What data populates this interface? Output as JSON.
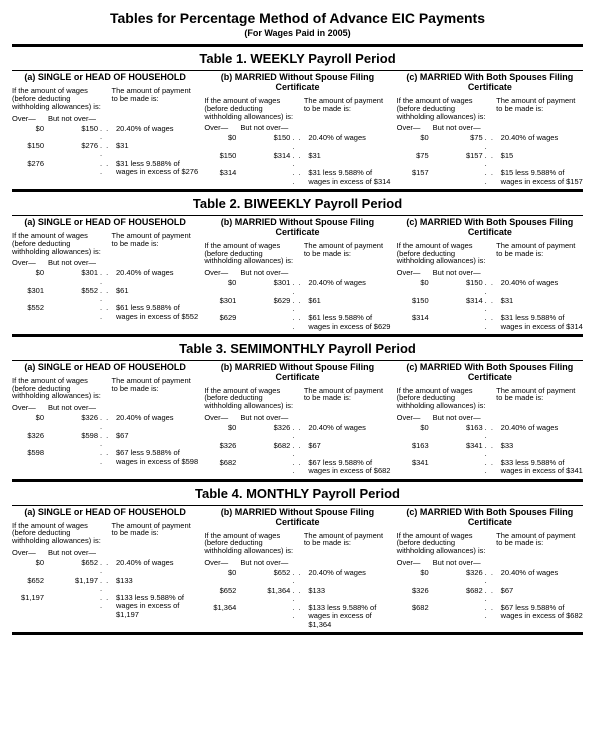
{
  "title": "Tables for Percentage Method of Advance EIC Payments",
  "subtitle": "(For Wages Paid in 2005)",
  "columnHeadings": {
    "a": "(a) SINGLE or HEAD OF HOUSEHOLD",
    "b": "(b) MARRIED Without Spouse Filing Certificate",
    "c": "(c) MARRIED With Both Spouses Filing Certificate"
  },
  "condLeft": "If the amount of wages (before deducting withholding allowances) is:",
  "condRight": "The amount of payment to be made is:",
  "overLabel": "Over—",
  "butNotOverLabel": "But not over—",
  "dots": ". . .",
  "tables": [
    {
      "title": "Table 1. WEEKLY Payroll Period",
      "cols": {
        "a": [
          {
            "over": "$0",
            "notOver": "$150",
            "pay": "20.40% of wages"
          },
          {
            "over": "$150",
            "notOver": "$276",
            "pay": "$31"
          },
          {
            "over": "$276",
            "notOver": "",
            "pay": "$31 less 9.588% of wages in excess of $276"
          }
        ],
        "b": [
          {
            "over": "$0",
            "notOver": "$150",
            "pay": "20.40% of wages"
          },
          {
            "over": "$150",
            "notOver": "$314",
            "pay": "$31"
          },
          {
            "over": "$314",
            "notOver": "",
            "pay": "$31 less 9.588% of wages in excess of $314"
          }
        ],
        "c": [
          {
            "over": "$0",
            "notOver": "$75",
            "pay": "20.40% of wages"
          },
          {
            "over": "$75",
            "notOver": "$157",
            "pay": "$15"
          },
          {
            "over": "$157",
            "notOver": "",
            "pay": "$15 less 9.588% of wages in excess of $157"
          }
        ]
      }
    },
    {
      "title": "Table 2. BIWEEKLY Payroll Period",
      "cols": {
        "a": [
          {
            "over": "$0",
            "notOver": "$301",
            "pay": "20.40% of wages"
          },
          {
            "over": "$301",
            "notOver": "$552",
            "pay": "$61"
          },
          {
            "over": "$552",
            "notOver": "",
            "pay": "$61 less 9.588% of wages in excess of $552"
          }
        ],
        "b": [
          {
            "over": "$0",
            "notOver": "$301",
            "pay": "20.40% of wages"
          },
          {
            "over": "$301",
            "notOver": "$629",
            "pay": "$61"
          },
          {
            "over": "$629",
            "notOver": "",
            "pay": "$61 less 9.588% of wages in excess of $629"
          }
        ],
        "c": [
          {
            "over": "$0",
            "notOver": "$150",
            "pay": "20.40% of wages"
          },
          {
            "over": "$150",
            "notOver": "$314",
            "pay": "$31"
          },
          {
            "over": "$314",
            "notOver": "",
            "pay": "$31 less 9.588% of wages in excess of $314"
          }
        ]
      }
    },
    {
      "title": "Table 3. SEMIMONTHLY Payroll Period",
      "cols": {
        "a": [
          {
            "over": "$0",
            "notOver": "$326",
            "pay": "20.40% of wages"
          },
          {
            "over": "$326",
            "notOver": "$598",
            "pay": "$67"
          },
          {
            "over": "$598",
            "notOver": "",
            "pay": "$67 less 9.588% of wages in excess of $598"
          }
        ],
        "b": [
          {
            "over": "$0",
            "notOver": "$326",
            "pay": "20.40% of wages"
          },
          {
            "over": "$326",
            "notOver": "$682",
            "pay": "$67"
          },
          {
            "over": "$682",
            "notOver": "",
            "pay": "$67 less 9.588% of wages in excess of $682"
          }
        ],
        "c": [
          {
            "over": "$0",
            "notOver": "$163",
            "pay": "20.40% of wages"
          },
          {
            "over": "$163",
            "notOver": "$341",
            "pay": "$33"
          },
          {
            "over": "$341",
            "notOver": "",
            "pay": "$33 less 9.588% of wages in excess of $341"
          }
        ]
      }
    },
    {
      "title": "Table 4. MONTHLY Payroll Period",
      "cols": {
        "a": [
          {
            "over": "$0",
            "notOver": "$652",
            "pay": "20.40% of wages"
          },
          {
            "over": "$652",
            "notOver": "$1,197",
            "pay": "$133"
          },
          {
            "over": "$1,197",
            "notOver": "",
            "pay": "$133 less 9.588% of wages in excess of $1,197"
          }
        ],
        "b": [
          {
            "over": "$0",
            "notOver": "$652",
            "pay": "20.40% of wages"
          },
          {
            "over": "$652",
            "notOver": "$1,364",
            "pay": "$133"
          },
          {
            "over": "$1,364",
            "notOver": "",
            "pay": "$133 less 9.588% of wages in excess of $1,364"
          }
        ],
        "c": [
          {
            "over": "$0",
            "notOver": "$326",
            "pay": "20.40% of wages"
          },
          {
            "over": "$326",
            "notOver": "$682",
            "pay": "$67"
          },
          {
            "over": "$682",
            "notOver": "",
            "pay": "$67 less 9.588% of wages in excess of $682"
          }
        ]
      }
    }
  ]
}
